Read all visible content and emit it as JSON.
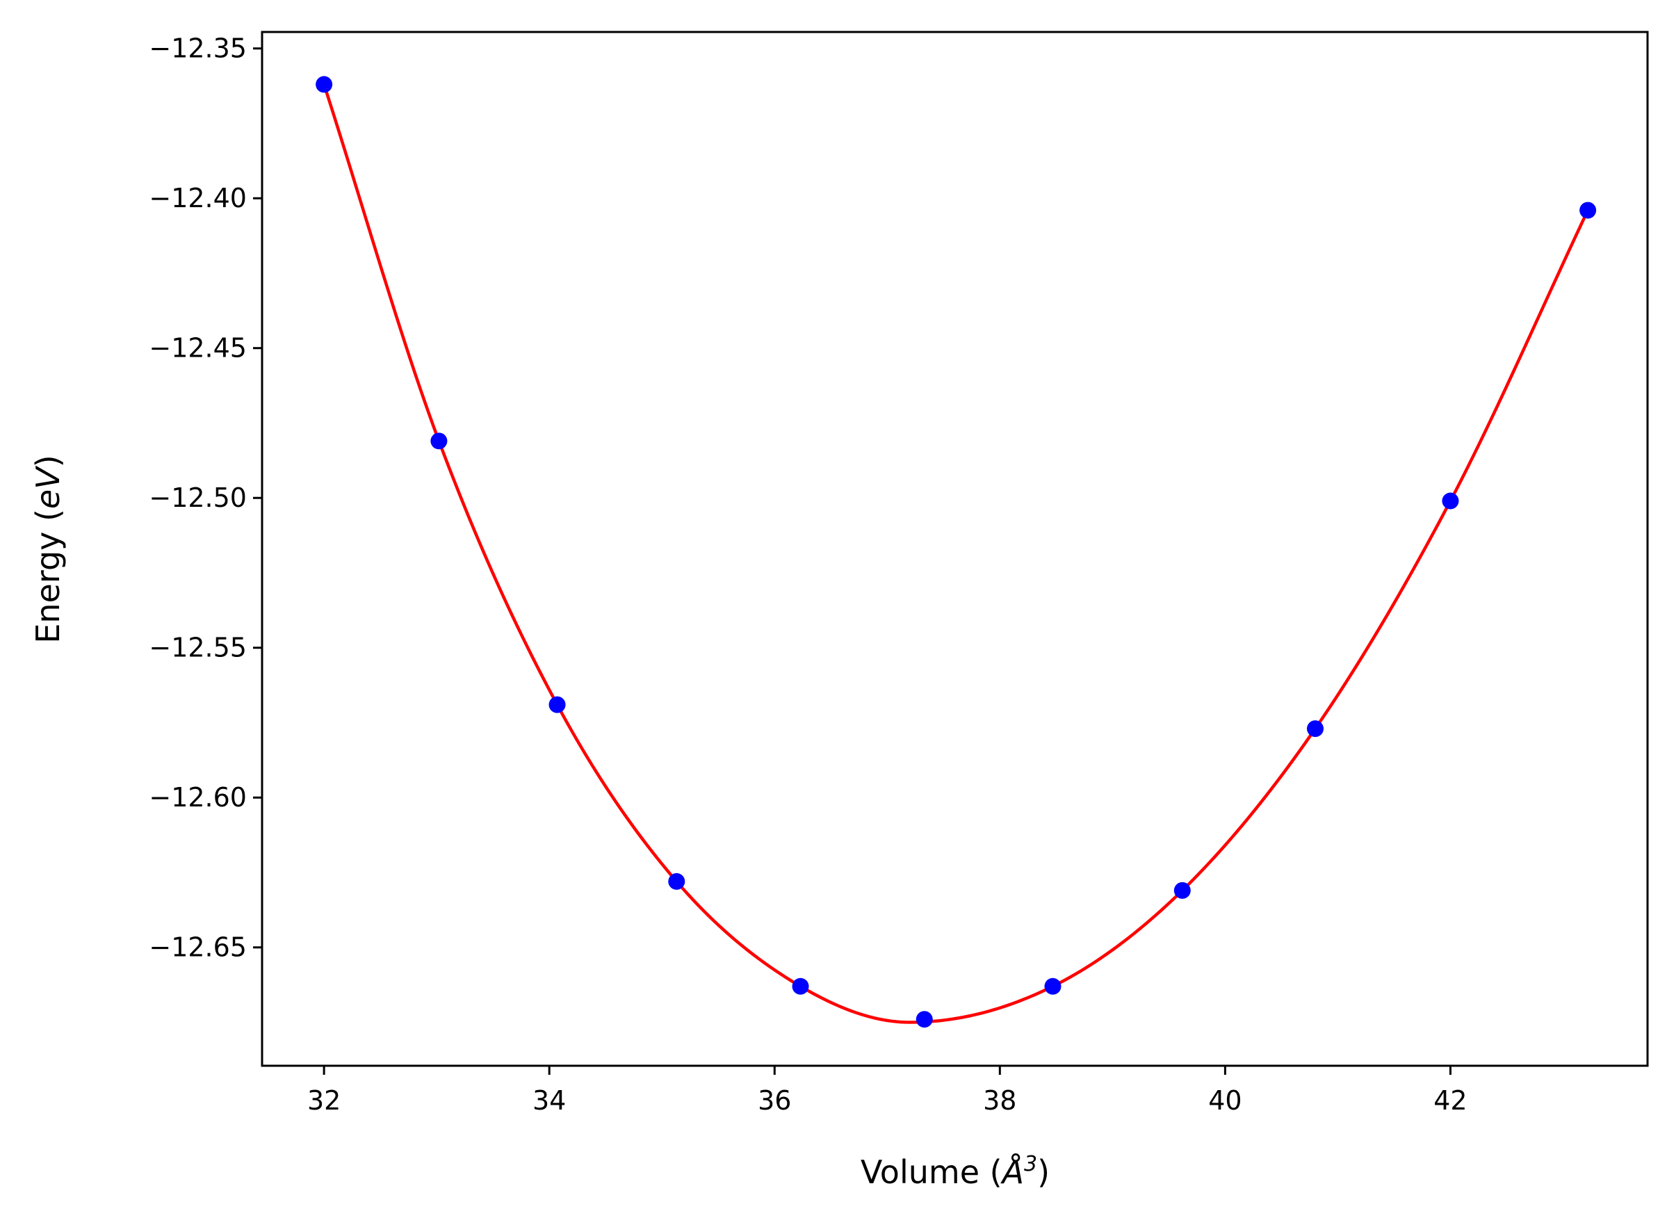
{
  "chart_data": {
    "type": "scatter",
    "xlabel": "Volume (Å³)",
    "xlabel_parts": {
      "prefix": "Volume (",
      "symbol": "Å",
      "superscript": "3",
      "suffix": ")"
    },
    "ylabel": "Energy (eV)",
    "ylabel_parts": {
      "prefix": "Energy (",
      "unit": "eV",
      "suffix": ")"
    },
    "xlim": [
      31.45,
      43.75
    ],
    "ylim": [
      -12.6895,
      -12.3445
    ],
    "xticks": [
      32,
      34,
      36,
      38,
      40,
      42
    ],
    "xtick_labels": [
      "32",
      "34",
      "36",
      "38",
      "40",
      "42"
    ],
    "yticks": [
      -12.35,
      -12.4,
      -12.45,
      -12.5,
      -12.55,
      -12.6,
      -12.65
    ],
    "ytick_labels": [
      "−12.35",
      "−12.40",
      "−12.45",
      "−12.50",
      "−12.55",
      "−12.60",
      "−12.65"
    ],
    "grid": false,
    "series": [
      {
        "kind": "points",
        "color": "#0000ff",
        "x": [
          32.0,
          33.02,
          34.07,
          35.13,
          36.23,
          37.33,
          38.47,
          39.62,
          40.8,
          42.0,
          43.22
        ],
        "y": [
          -12.362,
          -12.481,
          -12.569,
          -12.628,
          -12.663,
          -12.674,
          -12.663,
          -12.631,
          -12.577,
          -12.501,
          -12.404
        ]
      },
      {
        "kind": "fit-curve",
        "color": "#ff0000",
        "x": [
          32.0,
          33.02,
          34.07,
          35.13,
          36.23,
          37.2,
          38.47,
          39.62,
          40.8,
          42.0,
          43.22
        ],
        "y": [
          -12.362,
          -12.481,
          -12.569,
          -12.628,
          -12.663,
          -12.675,
          -12.663,
          -12.631,
          -12.577,
          -12.501,
          -12.404
        ]
      }
    ]
  }
}
